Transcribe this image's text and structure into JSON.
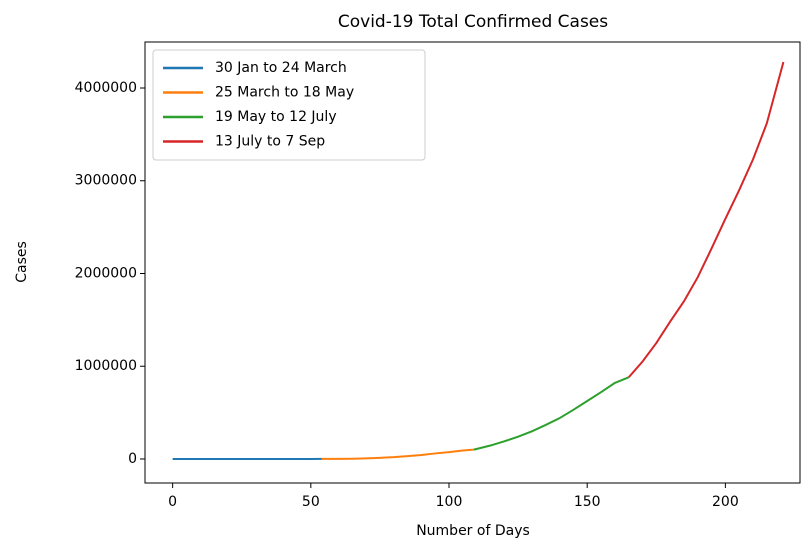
{
  "chart_data": {
    "type": "line",
    "title": "Covid-19 Total Confirmed Cases",
    "xlabel": "Number of Days",
    "ylabel": "Cases",
    "series": [
      {
        "name": "30 Jan to 24 March",
        "color": "#1f77b4",
        "x": [
          0,
          10,
          20,
          30,
          40,
          45,
          50,
          54
        ],
        "values": [
          1,
          3,
          3,
          3,
          3,
          30,
          170,
          536
        ]
      },
      {
        "name": "25 March to 18 May",
        "color": "#ff7f0e",
        "x": [
          54,
          60,
          65,
          70,
          75,
          80,
          85,
          90,
          95,
          100,
          105,
          109
        ],
        "values": [
          536,
          1250,
          3100,
          6700,
          12400,
          20000,
          31300,
          42500,
          59700,
          74300,
          91300,
          101000
        ]
      },
      {
        "name": "19 May to 12 July",
        "color": "#2ca02c",
        "x": [
          109,
          115,
          120,
          125,
          130,
          135,
          140,
          145,
          150,
          155,
          160,
          165
        ],
        "values": [
          101000,
          145000,
          190000,
          240000,
          298000,
          367000,
          440000,
          530000,
          625000,
          720000,
          820000,
          880000
        ]
      },
      {
        "name": "13 July to 7 Sep",
        "color": "#d62728",
        "x": [
          165,
          170,
          175,
          180,
          185,
          190,
          195,
          200,
          205,
          210,
          215,
          221
        ],
        "values": [
          880000,
          1050000,
          1250000,
          1480000,
          1700000,
          1960000,
          2270000,
          2590000,
          2900000,
          3230000,
          3620000,
          4280000
        ]
      }
    ],
    "xlim": [
      -10,
      227
    ],
    "xticks": [
      0,
      50,
      100,
      150,
      200
    ],
    "ylim": [
      -259000,
      4496000
    ],
    "yticks": [
      0,
      1000000,
      2000000,
      3000000,
      4000000
    ],
    "legend": "upper left",
    "grid": false
  }
}
